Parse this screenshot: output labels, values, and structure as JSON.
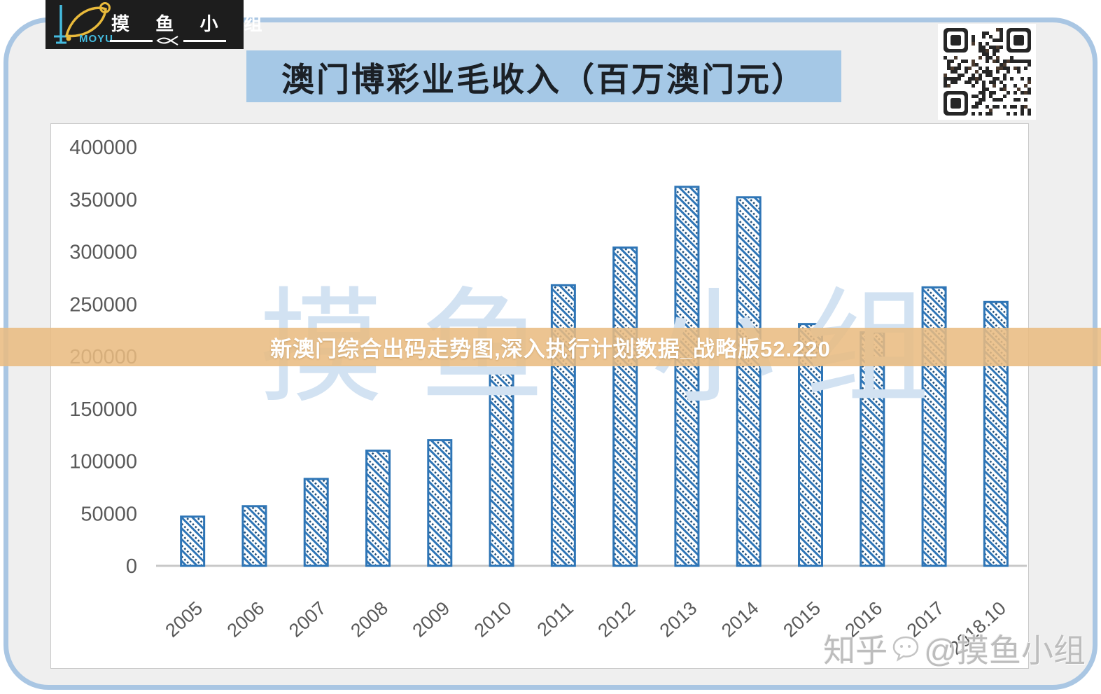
{
  "logo": {
    "brand_en": "MOYU",
    "brand_cn": "摸鱼小组"
  },
  "header": {
    "title": "澳门博彩业毛收入（百万澳门元）",
    "title_bg_color": "#a5c8e6"
  },
  "overlay_banner": {
    "text": "新澳门综合出码走势图,深入执行计划数据_战略版52.220",
    "bg_color": "#e9bb81",
    "text_color": "#ffffff"
  },
  "watermark_center": {
    "chars": [
      "摸",
      "鱼",
      "小",
      "组"
    ],
    "color": "#d2e2f2"
  },
  "watermark_bottom": {
    "site": "知乎",
    "handle": "@摸鱼小组"
  },
  "chart_data": {
    "type": "bar",
    "title": "澳门博彩业毛收入（百万澳门元）",
    "categories": [
      "2005",
      "2006",
      "2007",
      "2008",
      "2009",
      "2010",
      "2011",
      "2012",
      "2013",
      "2014",
      "2015",
      "2016",
      "2017",
      "2018.10"
    ],
    "values": [
      47000,
      57000,
      83000,
      110000,
      120000,
      189000,
      268000,
      304000,
      362000,
      352000,
      231000,
      223000,
      266000,
      252000
    ],
    "xlabel": "",
    "ylabel": "",
    "ylim": [
      0,
      400000
    ],
    "ytick_step": 50000,
    "grid": false,
    "legend": null,
    "bar_color": "#2e75b6",
    "bar_fill": "diagonal-hatch-with-dots",
    "axis_color": "#c8c8c8",
    "label_color": "#595959"
  }
}
